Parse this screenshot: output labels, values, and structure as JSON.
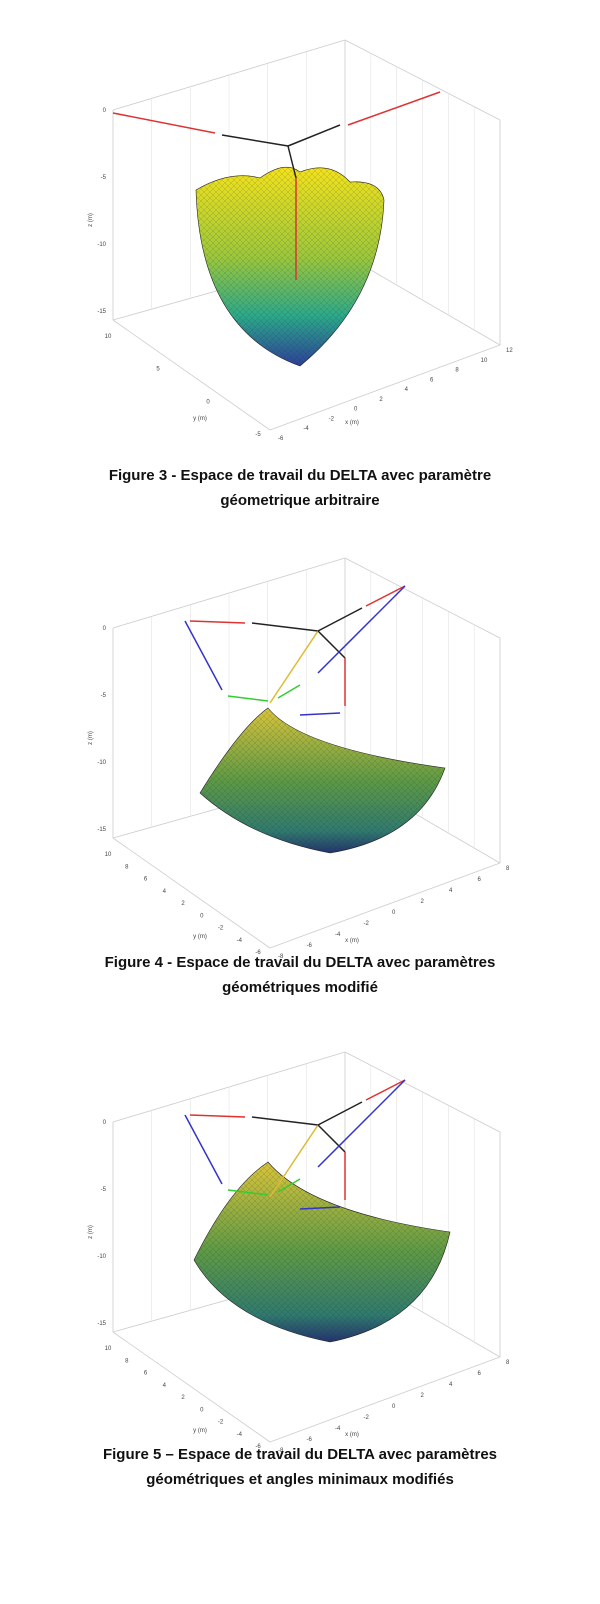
{
  "figures": [
    {
      "z_ticks": [
        "0",
        "-5",
        "-10",
        "-15"
      ],
      "z_label": "z (m)",
      "y_ticks": [
        "10",
        "5",
        "0",
        "-5"
      ],
      "y_label": "y (m)",
      "x_ticks": [
        "-6",
        "-4",
        "-2",
        "0",
        "2",
        "4",
        "6",
        "8",
        "10",
        "12"
      ],
      "x_label": "x (m)",
      "caption": [
        "Figure 3 - Espace de travail du DELTA avec paramètre",
        "géometrique arbitraire"
      ]
    },
    {
      "z_ticks": [
        "0",
        "-5",
        "-10",
        "-15"
      ],
      "z_label": "z (m)",
      "y_ticks": [
        "10",
        "8",
        "6",
        "4",
        "2",
        "0",
        "-2",
        "-4",
        "-6"
      ],
      "y_label": "y (m)",
      "x_ticks": [
        "-8",
        "-6",
        "-4",
        "-2",
        "0",
        "2",
        "4",
        "6",
        "8"
      ],
      "x_label": "x (m)",
      "caption": [
        "Figure 4 - Espace de travail du DELTA avec paramètres",
        "géométriques modifié"
      ]
    },
    {
      "z_ticks": [
        "0",
        "-5",
        "-10",
        "-15"
      ],
      "z_label": "z (m)",
      "y_ticks": [
        "10",
        "8",
        "6",
        "4",
        "2",
        "0",
        "-2",
        "-4",
        "-6"
      ],
      "y_label": "y (m)",
      "x_ticks": [
        "-8",
        "-6",
        "-4",
        "-2",
        "0",
        "2",
        "4",
        "6",
        "8"
      ],
      "x_label": "x (m)",
      "caption": [
        "Figure 5 – Espace de travail du DELTA avec paramètres",
        "géométriques et angles minimaux modifiés"
      ]
    }
  ]
}
